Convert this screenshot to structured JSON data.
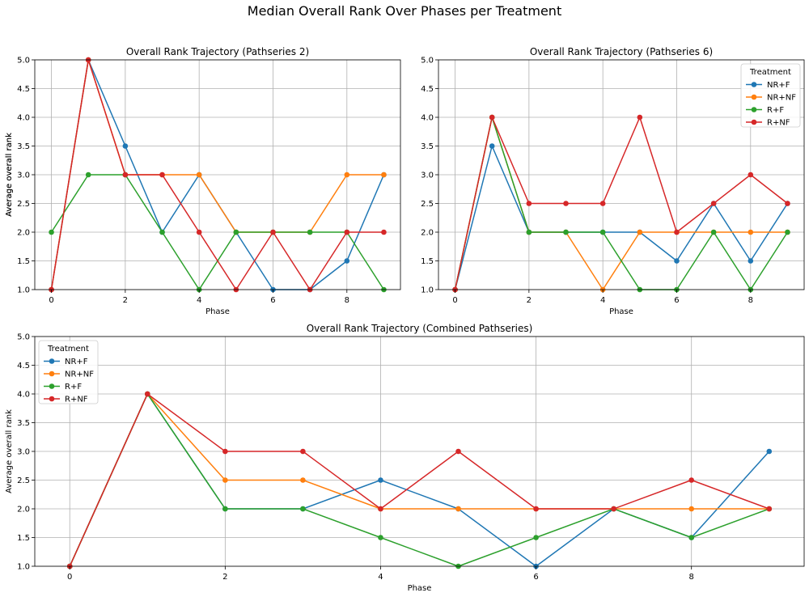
{
  "figure": {
    "suptitle": "Median Overall Rank Over Phases per Treatment"
  },
  "legend_title": "Treatment",
  "colors": {
    "NR+F": "#1f77b4",
    "NR+NF": "#ff7f0e",
    "R+F": "#2ca02c",
    "R+NF": "#d62728"
  },
  "chart_data": [
    {
      "type": "line",
      "title": "Overall Rank Trajectory (Pathseries 2)",
      "xlabel": "Phase",
      "ylabel": "Average overall rank",
      "x": [
        0,
        1,
        2,
        3,
        4,
        5,
        6,
        7,
        8,
        9
      ],
      "xlim": [
        -0.45,
        9.45
      ],
      "ylim": [
        1.0,
        5.0
      ],
      "xticks": [
        0,
        2,
        4,
        6,
        8
      ],
      "xtick_labels": [
        "0",
        "2",
        "4",
        "6",
        "8"
      ],
      "yticks": [
        1.0,
        1.5,
        2.0,
        2.5,
        3.0,
        3.5,
        4.0,
        4.5,
        5.0
      ],
      "ytick_labels": [
        "1.0",
        "1.5",
        "2.0",
        "2.5",
        "3.0",
        "3.5",
        "4.0",
        "4.5",
        "5.0"
      ],
      "grid": true,
      "legend": "none",
      "series": [
        {
          "name": "NR+F",
          "values": [
            1,
            5,
            3.5,
            2,
            3,
            2,
            1,
            1,
            1.5,
            3
          ]
        },
        {
          "name": "NR+NF",
          "values": [
            1,
            5,
            3,
            3,
            3,
            2,
            2,
            2,
            3,
            3
          ]
        },
        {
          "name": "R+F",
          "values": [
            2,
            3,
            3,
            2,
            1,
            2,
            2,
            2,
            2,
            1
          ]
        },
        {
          "name": "R+NF",
          "values": [
            1,
            5,
            3,
            3,
            2,
            1,
            2,
            1,
            2,
            2
          ]
        }
      ]
    },
    {
      "type": "line",
      "title": "Overall Rank Trajectory (Pathseries 6)",
      "xlabel": "Phase",
      "ylabel": "Average overall rank",
      "x": [
        0,
        1,
        2,
        3,
        4,
        5,
        6,
        7,
        8,
        9
      ],
      "xlim": [
        -0.45,
        9.45
      ],
      "ylim": [
        1.0,
        5.0
      ],
      "xticks": [
        0,
        2,
        4,
        6,
        8
      ],
      "xtick_labels": [
        "0",
        "2",
        "4",
        "6",
        "8"
      ],
      "yticks": [
        1.0,
        1.5,
        2.0,
        2.5,
        3.0,
        3.5,
        4.0,
        4.5,
        5.0
      ],
      "ytick_labels": [
        "1.0",
        "1.5",
        "2.0",
        "2.5",
        "3.0",
        "3.5",
        "4.0",
        "4.5",
        "5.0"
      ],
      "grid": true,
      "legend": "upper-right",
      "series": [
        {
          "name": "NR+F",
          "values": [
            1,
            3.5,
            2,
            2,
            2,
            2,
            1.5,
            2.5,
            1.5,
            2.5
          ]
        },
        {
          "name": "NR+NF",
          "values": [
            1,
            4,
            2,
            2,
            1,
            2,
            2,
            2,
            2,
            2
          ]
        },
        {
          "name": "R+F",
          "values": [
            1,
            4,
            2,
            2,
            2,
            1,
            1,
            2,
            1,
            2
          ]
        },
        {
          "name": "R+NF",
          "values": [
            1,
            4,
            2.5,
            2.5,
            2.5,
            4,
            2,
            2.5,
            3,
            2.5
          ]
        }
      ]
    },
    {
      "type": "line",
      "title": "Overall Rank Trajectory (Combined Pathseries)",
      "xlabel": "Phase",
      "ylabel": "Average overall rank",
      "x": [
        0,
        1,
        2,
        3,
        4,
        5,
        6,
        7,
        8,
        9
      ],
      "xlim": [
        -0.45,
        9.45
      ],
      "ylim": [
        1.0,
        5.0
      ],
      "xticks": [
        0,
        2,
        4,
        6,
        8
      ],
      "xtick_labels": [
        "0",
        "2",
        "4",
        "6",
        "8"
      ],
      "yticks": [
        1.0,
        1.5,
        2.0,
        2.5,
        3.0,
        3.5,
        4.0,
        4.5,
        5.0
      ],
      "ytick_labels": [
        "1.0",
        "1.5",
        "2.0",
        "2.5",
        "3.0",
        "3.5",
        "4.0",
        "4.5",
        "5.0"
      ],
      "grid": true,
      "legend": "upper-left",
      "series": [
        {
          "name": "NR+F",
          "values": [
            1,
            4,
            2,
            2,
            2.5,
            2,
            1,
            2,
            1.5,
            3
          ]
        },
        {
          "name": "NR+NF",
          "values": [
            1,
            4,
            2.5,
            2.5,
            2,
            2,
            2,
            2,
            2,
            2
          ]
        },
        {
          "name": "R+F",
          "values": [
            1,
            4,
            2,
            2,
            1.5,
            1,
            1.5,
            2,
            1.5,
            2
          ]
        },
        {
          "name": "R+NF",
          "values": [
            1,
            4,
            3,
            3,
            2,
            3,
            2,
            2,
            2.5,
            2
          ]
        }
      ]
    }
  ]
}
